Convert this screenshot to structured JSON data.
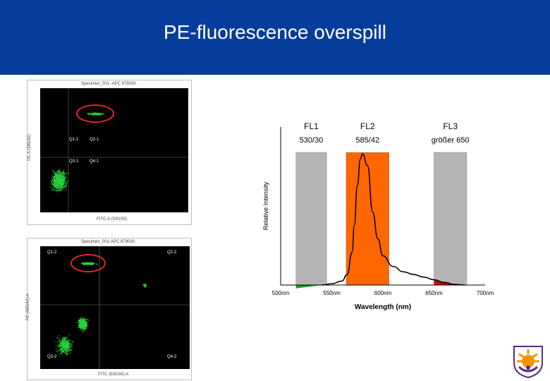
{
  "slide": {
    "title": "PE-fluorescence overspill"
  },
  "top_plot": {
    "header": "Specimen_001 -APC 879030",
    "x_label": "FITC-A (530/30)",
    "y_label": "PE-A (585/42)",
    "quadrants": [
      "Q1-1",
      "Q2-1",
      "Q3-1",
      "Q4-1"
    ],
    "circle_color": "#e0252a",
    "dot_color": "#29d33c"
  },
  "bottom_plot": {
    "header": "Specimen_001-APC 879030",
    "x_label": "FITC (530/30)-A",
    "y_label": "PE (585/42)-A",
    "quadrants": [
      "Q1-2",
      "Q2-2",
      "Q3-2",
      "Q4-2"
    ],
    "circle_color": "#e0252a",
    "dot_color": "#29d33c"
  },
  "chart_data": {
    "type": "line",
    "title": "",
    "xlabel": "Wavelength (nm)",
    "ylabel": "Relative Intensity",
    "x_ticks": [
      "500nm",
      "550nm",
      "600nm",
      "650nm",
      "700nm"
    ],
    "xlim": [
      500,
      700
    ],
    "ylim": [
      0,
      100
    ],
    "series": [
      {
        "name": "",
        "x": [
          540,
          550,
          560,
          565,
          570,
          572,
          575,
          578,
          580,
          585,
          590,
          595,
          600,
          610,
          620,
          630,
          640,
          650,
          660,
          670,
          680
        ],
        "y": [
          0,
          1,
          3,
          8,
          25,
          45,
          75,
          95,
          99,
          90,
          55,
          35,
          22,
          14,
          10,
          8,
          6,
          4,
          2,
          0.5,
          0
        ]
      }
    ],
    "filters": [
      {
        "name": "FL1",
        "band": "530/30",
        "x_start": 515,
        "x_end": 545,
        "color": "#b4b4b4"
      },
      {
        "name": "FL2",
        "band": "585/42",
        "x_start": 564,
        "x_end": 606,
        "color": "#ff6600"
      },
      {
        "name": "FL3",
        "band": "größer 650",
        "x_start": 650,
        "x_end": 682,
        "color": "#b4b4b4"
      }
    ],
    "grid": false
  },
  "colors": {
    "header_bg": "#063d9c",
    "title_text": "#ffffff",
    "overlap_fl1": "#1aa01a",
    "overlap_fl3": "#cc0000",
    "logo_orange": "#f29400",
    "logo_purple": "#5b2c83"
  }
}
